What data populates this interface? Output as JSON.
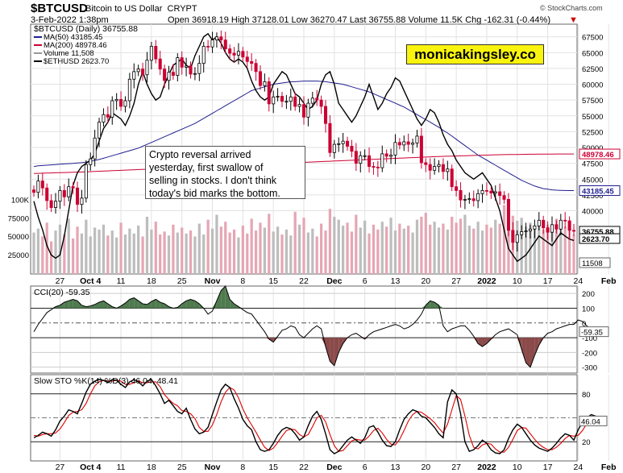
{
  "header": {
    "symbol": "$BTCUSD",
    "name": "Bitcoin to US Dollar",
    "exchange": "CRYPT",
    "date": "3-Feb-2022 1:38pm",
    "quote": "Open 36918.19  High 37128.01  Low 36270.47  Last 36755.88  Volume 11.5K  Chg -162.31 (-0.44%)",
    "quote_arrow": "▼",
    "brand_small": "© StockCharts.com"
  },
  "brand_box": "monicakingsley.co",
  "annotation": [
    "Crypto reversal arrived",
    "yesterday, first swallow of",
    "selling in stocks. I don't think",
    "today's bid marks the bottom."
  ],
  "colors": {
    "up": "#ffffff",
    "down": "#cc0033",
    "ma50": "#1f1f8f",
    "ma200": "#cc0033",
    "eth": "#000000",
    "vol": "#bdbdbd",
    "volDown": "#e6a6b4",
    "cciFillUp": "#4e7a4e",
    "cciFillDown": "#8b4a4a",
    "stoD": "#dd0000"
  },
  "chart_data": [
    {
      "type": "candlestick",
      "title": "$BTCUSD (Daily) 36755.88",
      "legend": [
        "MA(50) 43185.45",
        "MA(200) 48978.46",
        "Volume 11,508",
        "$ETHUSD 2623.70"
      ],
      "y_ticks": [
        40000,
        42500,
        45000,
        47500,
        50000,
        52500,
        55000,
        57500,
        60000,
        62500,
        65000,
        67500
      ],
      "y_tick_labels": [
        "40000",
        "42500",
        "45000",
        "47500",
        "50000",
        "52500",
        "55000",
        "57500",
        "60000",
        "62500",
        "65000",
        "67500"
      ],
      "ylim": [
        30000,
        69500
      ],
      "x_labels": [
        {
          "i": 6,
          "t": "27"
        },
        {
          "i": 13,
          "t": "Oct 4"
        },
        {
          "i": 20,
          "t": "11"
        },
        {
          "i": 27,
          "t": "18"
        },
        {
          "i": 34,
          "t": "25"
        },
        {
          "i": 41,
          "t": "Nov"
        },
        {
          "i": 48,
          "t": "8"
        },
        {
          "i": 55,
          "t": "15"
        },
        {
          "i": 62,
          "t": "22"
        },
        {
          "i": 69,
          "t": "Dec"
        },
        {
          "i": 76,
          "t": "6"
        },
        {
          "i": 83,
          "t": "13"
        },
        {
          "i": 90,
          "t": "20"
        },
        {
          "i": 97,
          "t": "27"
        },
        {
          "i": 104,
          "t": "2022"
        },
        {
          "i": 111,
          "t": "10"
        },
        {
          "i": 118,
          "t": "17"
        },
        {
          "i": 125,
          "t": "24"
        },
        {
          "i": 132,
          "t": "Feb"
        }
      ],
      "closes": [
        42900,
        44700,
        43600,
        41600,
        40500,
        41500,
        43200,
        42200,
        43800,
        43600,
        41000,
        42000,
        47300,
        48200,
        51500,
        54000,
        55200,
        54800,
        57400,
        57600,
        56500,
        57400,
        60800,
        62000,
        62400,
        61500,
        63800,
        66000,
        64000,
        62400,
        60600,
        61900,
        61400,
        64200,
        62700,
        62900,
        61600,
        61700,
        63300,
        66000,
        65900,
        67000,
        67500,
        67000,
        65600,
        64900,
        64600,
        65200,
        64300,
        63600,
        63300,
        62000,
        59800,
        60400,
        56900,
        58000,
        58100,
        57300,
        57300,
        58000,
        56500,
        56800,
        54800,
        57000,
        57800,
        57500,
        56500,
        53800,
        49200,
        50500,
        50600,
        51000,
        50200,
        49400,
        47500,
        48700,
        48700,
        47000,
        46900,
        46800,
        49000,
        48600,
        48800,
        50800,
        50400,
        50900,
        50500,
        50700,
        51800,
        47600,
        47300,
        46400,
        47000,
        47300,
        46200,
        46600,
        43800,
        43200,
        41700,
        41800,
        41900,
        41600,
        42700,
        43200,
        43100,
        42800,
        43000,
        42400,
        41800,
        36900,
        35000,
        36200,
        36700,
        36800,
        37100,
        37600,
        38500,
        37300,
        36600,
        37800,
        37100,
        38500,
        38400,
        36900,
        36760
      ],
      "ma50": [
        47000,
        47100,
        47150,
        47200,
        47250,
        47300,
        47350,
        47400,
        47450,
        47500,
        47550,
        47600,
        47700,
        47800,
        47950,
        48100,
        48300,
        48500,
        48700,
        48900,
        49100,
        49300,
        49500,
        49700,
        49900,
        50200,
        50500,
        50800,
        51100,
        51400,
        51700,
        52000,
        52300,
        52600,
        52900,
        53200,
        53500,
        53800,
        54200,
        54600,
        55000,
        55400,
        55800,
        56200,
        56600,
        57000,
        57400,
        57800,
        58200,
        58600,
        59000,
        59200,
        59400,
        59600,
        59800,
        60000,
        60100,
        60200,
        60300,
        60400,
        60400,
        60450,
        60500,
        60500,
        60500,
        60500,
        60450,
        60400,
        60300,
        60200,
        60100,
        60000,
        59800,
        59600,
        59400,
        59200,
        59000,
        58800,
        58500,
        58200,
        57900,
        57600,
        57300,
        57000,
        56700,
        56400,
        56000,
        55600,
        55200,
        54800,
        54400,
        54000,
        53600,
        53200,
        52700,
        52300,
        51800,
        51300,
        50800,
        50300,
        49800,
        49300,
        48800,
        48400,
        48000,
        47600,
        47200,
        46800,
        46400,
        46000,
        45600,
        45200,
        44800,
        44500,
        44200,
        43900,
        43700,
        43500,
        43400,
        43300,
        43250,
        43220,
        43200,
        43190,
        43185
      ],
      "ma200": [
        45900,
        45920,
        45940,
        45960,
        45980,
        46000,
        46020,
        46040,
        46060,
        46080,
        46100,
        46120,
        46150,
        46180,
        46210,
        46240,
        46270,
        46300,
        46330,
        46360,
        46390,
        46420,
        46450,
        46480,
        46510,
        46540,
        46570,
        46600,
        46630,
        46660,
        46690,
        46720,
        46750,
        46780,
        46810,
        46840,
        46870,
        46900,
        46930,
        46960,
        46990,
        47020,
        47050,
        47080,
        47110,
        47140,
        47170,
        47200,
        47230,
        47260,
        47290,
        47320,
        47350,
        47380,
        47410,
        47440,
        47470,
        47500,
        47530,
        47560,
        47590,
        47620,
        47650,
        47680,
        47710,
        47740,
        47770,
        47800,
        47830,
        47860,
        47890,
        47920,
        47950,
        47980,
        48010,
        48040,
        48070,
        48100,
        48130,
        48160,
        48190,
        48220,
        48250,
        48280,
        48310,
        48340,
        48370,
        48400,
        48430,
        48460,
        48490,
        48520,
        48550,
        48580,
        48600,
        48620,
        48640,
        48660,
        48680,
        48700,
        48720,
        48740,
        48760,
        48780,
        48800,
        48820,
        48840,
        48860,
        48870,
        48880,
        48890,
        48900,
        48910,
        48920,
        48930,
        48940,
        48950,
        48955,
        48960,
        48965,
        48968,
        48971,
        48974,
        48977,
        48979
      ],
      "eth": [
        41500,
        39000,
        37000,
        34500,
        33000,
        32500,
        33000,
        36000,
        40000,
        44000,
        46000,
        47000,
        47500,
        48000,
        49000,
        51000,
        53000,
        54000,
        55500,
        55000,
        54500,
        53500,
        55000,
        57000,
        60000,
        62000,
        60000,
        58500,
        57500,
        58000,
        60000,
        61500,
        63000,
        63500,
        64000,
        63000,
        62500,
        64500,
        66000,
        67500,
        68000,
        67000,
        67500,
        66500,
        65000,
        64000,
        63500,
        64000,
        63500,
        62500,
        60500,
        59000,
        58000,
        57500,
        58000,
        60000,
        61000,
        62000,
        61500,
        60000,
        58500,
        58000,
        57000,
        56000,
        56500,
        57500,
        60000,
        61500,
        62000,
        60000,
        57000,
        56000,
        55000,
        54000,
        55000,
        56500,
        58000,
        60000,
        58000,
        56000,
        57000,
        58500,
        59500,
        61000,
        60500,
        59000,
        57500,
        56000,
        54500,
        53500,
        54500,
        56000,
        55500,
        54000,
        52000,
        50500,
        49500,
        48000,
        47000,
        46000,
        45500,
        45000,
        45500,
        46000,
        45000,
        44000,
        42000,
        40000,
        37000,
        34000,
        33000,
        32000,
        32500,
        33000,
        34000,
        35000,
        36000,
        35500,
        35000,
        34500,
        35500,
        36500,
        36000,
        35500,
        35300
      ],
      "volumes": [
        42,
        46,
        38,
        52,
        33,
        44,
        50,
        40,
        56,
        36,
        48,
        41,
        55,
        38,
        47,
        45,
        50,
        39,
        44,
        37,
        52,
        40,
        46,
        41,
        49,
        38,
        58,
        45,
        53,
        40,
        43,
        39,
        50,
        42,
        47,
        41,
        44,
        38,
        51,
        40,
        55,
        46,
        60,
        48,
        53,
        42,
        45,
        37,
        49,
        41,
        56,
        44,
        52,
        47,
        61,
        43,
        48,
        40,
        45,
        39,
        63,
        50,
        57,
        42,
        46,
        38,
        51,
        44,
        66,
        58,
        55,
        49,
        52,
        43,
        60,
        47,
        54,
        41,
        50,
        45,
        53,
        48,
        57,
        44,
        51,
        46,
        49,
        42,
        55,
        58,
        62,
        50,
        53,
        47,
        51,
        45,
        58,
        52,
        56,
        60,
        49,
        46,
        53,
        44,
        50,
        47,
        55,
        51,
        70,
        62,
        59,
        54,
        57,
        48,
        52,
        49,
        53,
        45,
        50,
        47,
        56,
        51,
        48,
        44,
        40
      ],
      "volume_ticks": [
        25000,
        50000,
        75000,
        100000
      ],
      "volume_tick_labels": [
        "25000",
        "50000",
        "75000",
        "100K"
      ],
      "current_labels": [
        "48978.46",
        "43185.45",
        "36755.88",
        "2623.70",
        "11508"
      ]
    },
    {
      "type": "line",
      "title": "CCI(20) -59.35",
      "y_ticks": [
        200,
        100,
        0,
        -100,
        -200,
        -300
      ],
      "y_tick_labels": [
        "200",
        "100",
        "0",
        "-100",
        "-200",
        "-300"
      ],
      "ylim": [
        -340,
        250
      ],
      "values": [
        -60,
        -10,
        30,
        70,
        90,
        110,
        120,
        140,
        150,
        160,
        150,
        120,
        110,
        115,
        125,
        140,
        150,
        130,
        110,
        100,
        115,
        135,
        160,
        170,
        150,
        130,
        125,
        145,
        160,
        140,
        130,
        110,
        100,
        105,
        130,
        150,
        160,
        150,
        130,
        100,
        60,
        80,
        150,
        220,
        250,
        160,
        130,
        110,
        90,
        70,
        60,
        20,
        -20,
        -60,
        -110,
        -130,
        -90,
        -50,
        -40,
        -20,
        -30,
        -80,
        -100,
        -70,
        -40,
        -20,
        -40,
        -160,
        -260,
        -290,
        -200,
        -140,
        -100,
        -80,
        -70,
        -90,
        -110,
        -80,
        -60,
        -50,
        -40,
        -30,
        -20,
        -10,
        -20,
        -40,
        -30,
        -10,
        20,
        60,
        120,
        150,
        140,
        120,
        -20,
        -60,
        -40,
        -30,
        -20,
        -20,
        -50,
        -90,
        -140,
        -160,
        -140,
        -110,
        -80,
        -60,
        -50,
        -40,
        -60,
        -80,
        -180,
        -270,
        -300,
        -220,
        -150,
        -100,
        -70,
        -60,
        -40,
        -30,
        -20,
        -10,
        -10,
        20,
        10,
        -20,
        -59
      ]
    },
    {
      "type": "line",
      "title": "Slow STO %K(14) %D(3) 46.04, 48.41",
      "y_ticks": [
        80,
        20
      ],
      "y_tick_labels": [
        "80",
        "20"
      ],
      "ylim": [
        0,
        100
      ],
      "k": [
        25,
        28,
        32,
        30,
        27,
        35,
        46,
        52,
        60,
        58,
        55,
        68,
        82,
        92,
        96,
        98,
        97,
        94,
        98,
        97,
        92,
        88,
        95,
        98,
        95,
        90,
        96,
        98,
        90,
        80,
        68,
        72,
        65,
        58,
        55,
        62,
        48,
        36,
        30,
        32,
        38,
        54,
        70,
        85,
        92,
        88,
        74,
        62,
        48,
        40,
        35,
        20,
        10,
        8,
        10,
        18,
        28,
        35,
        38,
        36,
        30,
        22,
        26,
        40,
        52,
        58,
        48,
        30,
        10,
        5,
        8,
        15,
        22,
        26,
        22,
        18,
        25,
        38,
        40,
        32,
        22,
        15,
        14,
        20,
        35,
        48,
        55,
        60,
        58,
        52,
        50,
        44,
        38,
        30,
        25,
        70,
        85,
        80,
        55,
        20,
        8,
        10,
        15,
        22,
        18,
        10,
        6,
        5,
        10,
        24,
        35,
        42,
        38,
        30,
        22,
        16,
        12,
        10,
        8,
        12,
        18,
        25,
        30,
        28,
        22,
        35,
        45,
        50,
        54,
        52,
        46
      ],
      "d": [
        28,
        27,
        29,
        30,
        30,
        31,
        36,
        44,
        53,
        57,
        58,
        60,
        68,
        80,
        90,
        95,
        97,
        96,
        96,
        97,
        96,
        92,
        92,
        94,
        96,
        94,
        94,
        95,
        95,
        89,
        79,
        73,
        68,
        65,
        59,
        58,
        55,
        49,
        38,
        33,
        33,
        41,
        54,
        70,
        82,
        88,
        85,
        75,
        61,
        50,
        41,
        32,
        22,
        13,
        9,
        12,
        19,
        27,
        34,
        36,
        35,
        29,
        26,
        29,
        39,
        50,
        53,
        45,
        29,
        15,
        8,
        9,
        15,
        21,
        23,
        22,
        22,
        27,
        34,
        37,
        31,
        23,
        17,
        16,
        23,
        34,
        46,
        54,
        58,
        57,
        53,
        49,
        44,
        37,
        31,
        42,
        60,
        78,
        73,
        52,
        28,
        13,
        11,
        16,
        18,
        17,
        11,
        7,
        7,
        13,
        23,
        34,
        38,
        37,
        30,
        23,
        17,
        13,
        10,
        10,
        13,
        18,
        24,
        28,
        27,
        28,
        34,
        43,
        50,
        52,
        48
      ],
      "current_labels": [
        "46.04"
      ]
    }
  ]
}
